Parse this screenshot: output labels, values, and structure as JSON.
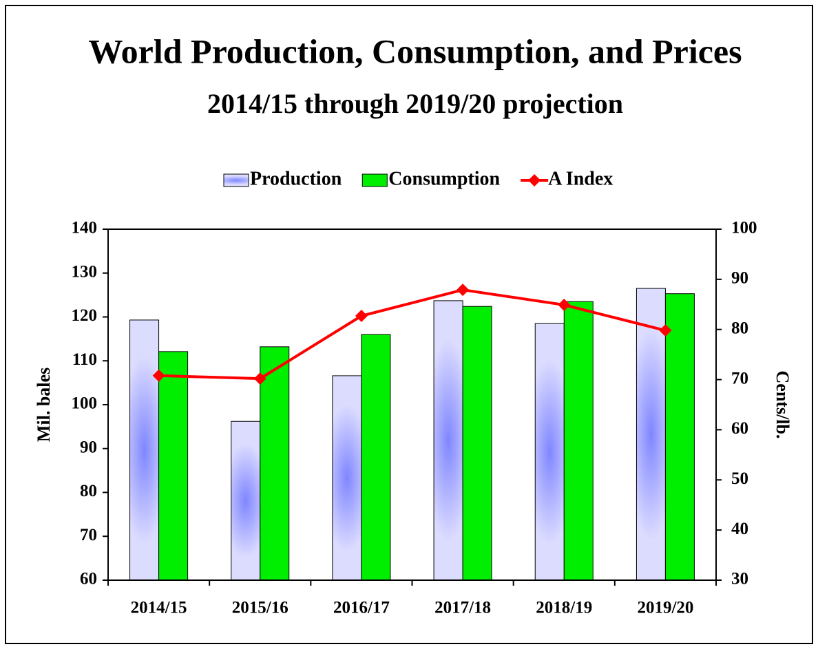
{
  "chart_data": {
    "type": "bar",
    "title": "World Production, Consumption, and Prices",
    "subtitle": "2014/15 through 2019/20 projection",
    "categories": [
      "2014/15",
      "2015/16",
      "2016/17",
      "2017/18",
      "2018/19",
      "2019/20"
    ],
    "series": [
      {
        "name": "Production",
        "color": "#7f86ff",
        "values": [
          119.3,
          96.2,
          106.6,
          123.7,
          118.5,
          126.5
        ]
      },
      {
        "name": "Consumption",
        "color": "#00ee00",
        "values": [
          112.1,
          113.2,
          116,
          122.4,
          123.5,
          125.3
        ]
      },
      {
        "name": "A Index",
        "color": "#ff0000",
        "axis": "y2",
        "type": "line",
        "values": [
          70.8,
          70.2,
          82.7,
          87.9,
          84.9,
          79.8
        ]
      }
    ],
    "ylabel": "Mil. bales",
    "y2label": "Cents/lb.",
    "ylim": [
      60,
      140
    ],
    "yticks": [
      60,
      70,
      80,
      90,
      100,
      110,
      120,
      130,
      140
    ],
    "y2lim": [
      30,
      100
    ],
    "y2ticks": [
      30,
      40,
      50,
      60,
      70,
      80,
      90,
      100
    ],
    "legend": "top"
  }
}
